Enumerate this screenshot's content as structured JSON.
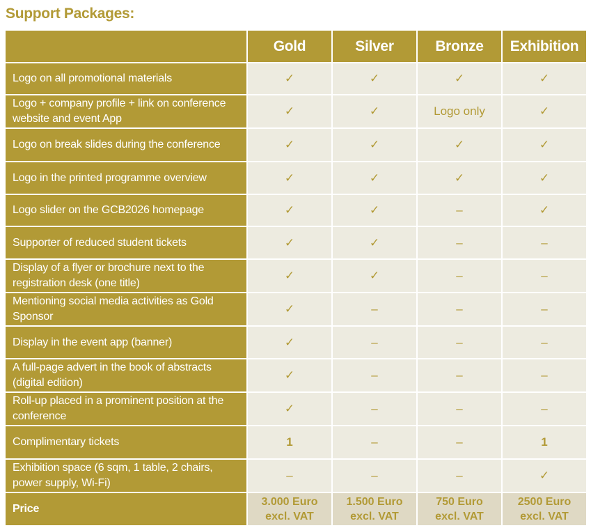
{
  "title": "Support Packages:",
  "columns": [
    "Gold",
    "Silver",
    "Bronze",
    "Exhibition"
  ],
  "colors": {
    "gold": "#b29a36",
    "cell": "#edebe0",
    "price_cell": "#dfd9c4"
  },
  "rows": [
    {
      "label": "Logo on all promotional materials",
      "values": [
        "✓",
        "✓",
        "✓",
        "✓"
      ]
    },
    {
      "label": "Logo + company profile + link on conference website and event App",
      "values": [
        "✓",
        "✓",
        "Logo only",
        "✓"
      ]
    },
    {
      "label": "Logo on break slides during the conference",
      "values": [
        "✓",
        "✓",
        "✓",
        "✓"
      ]
    },
    {
      "label": "Logo in the printed programme overview",
      "values": [
        "✓",
        "✓",
        "✓",
        "✓"
      ]
    },
    {
      "label": "Logo slider on the GCB2026 homepage",
      "values": [
        "✓",
        "✓",
        "–",
        "✓"
      ]
    },
    {
      "label": "Supporter of reduced student tickets",
      "values": [
        "✓",
        "✓",
        "–",
        "–"
      ]
    },
    {
      "label": "Display of a flyer or brochure next to the registration desk (one title)",
      "values": [
        "✓",
        "✓",
        "–",
        "–"
      ]
    },
    {
      "label": "Mentioning social media activities as Gold Sponsor",
      "values": [
        "✓",
        "–",
        "–",
        "–"
      ]
    },
    {
      "label": "Display in the event app (banner)",
      "values": [
        "✓",
        "–",
        "–",
        "–"
      ]
    },
    {
      "label": "A full-page advert in the book of abstracts (digital edition)",
      "values": [
        "✓",
        "–",
        "–",
        "–"
      ]
    },
    {
      "label": "Roll-up placed in a prominent position at the conference",
      "values": [
        "✓",
        "–",
        "–",
        "–"
      ]
    },
    {
      "label": "Complimentary tickets",
      "values": [
        "1",
        "–",
        "–",
        "1"
      ]
    },
    {
      "label": "Exhibition space (6 sqm, 1 table, 2 chairs, power supply, Wi-Fi)",
      "values": [
        "–",
        "–",
        "–",
        "✓"
      ]
    }
  ],
  "price": {
    "label": "Price",
    "values": [
      "3.000 Euro excl. VAT",
      "1.500 Euro excl. VAT",
      "750 Euro excl. VAT",
      "2500 Euro excl. VAT"
    ]
  }
}
